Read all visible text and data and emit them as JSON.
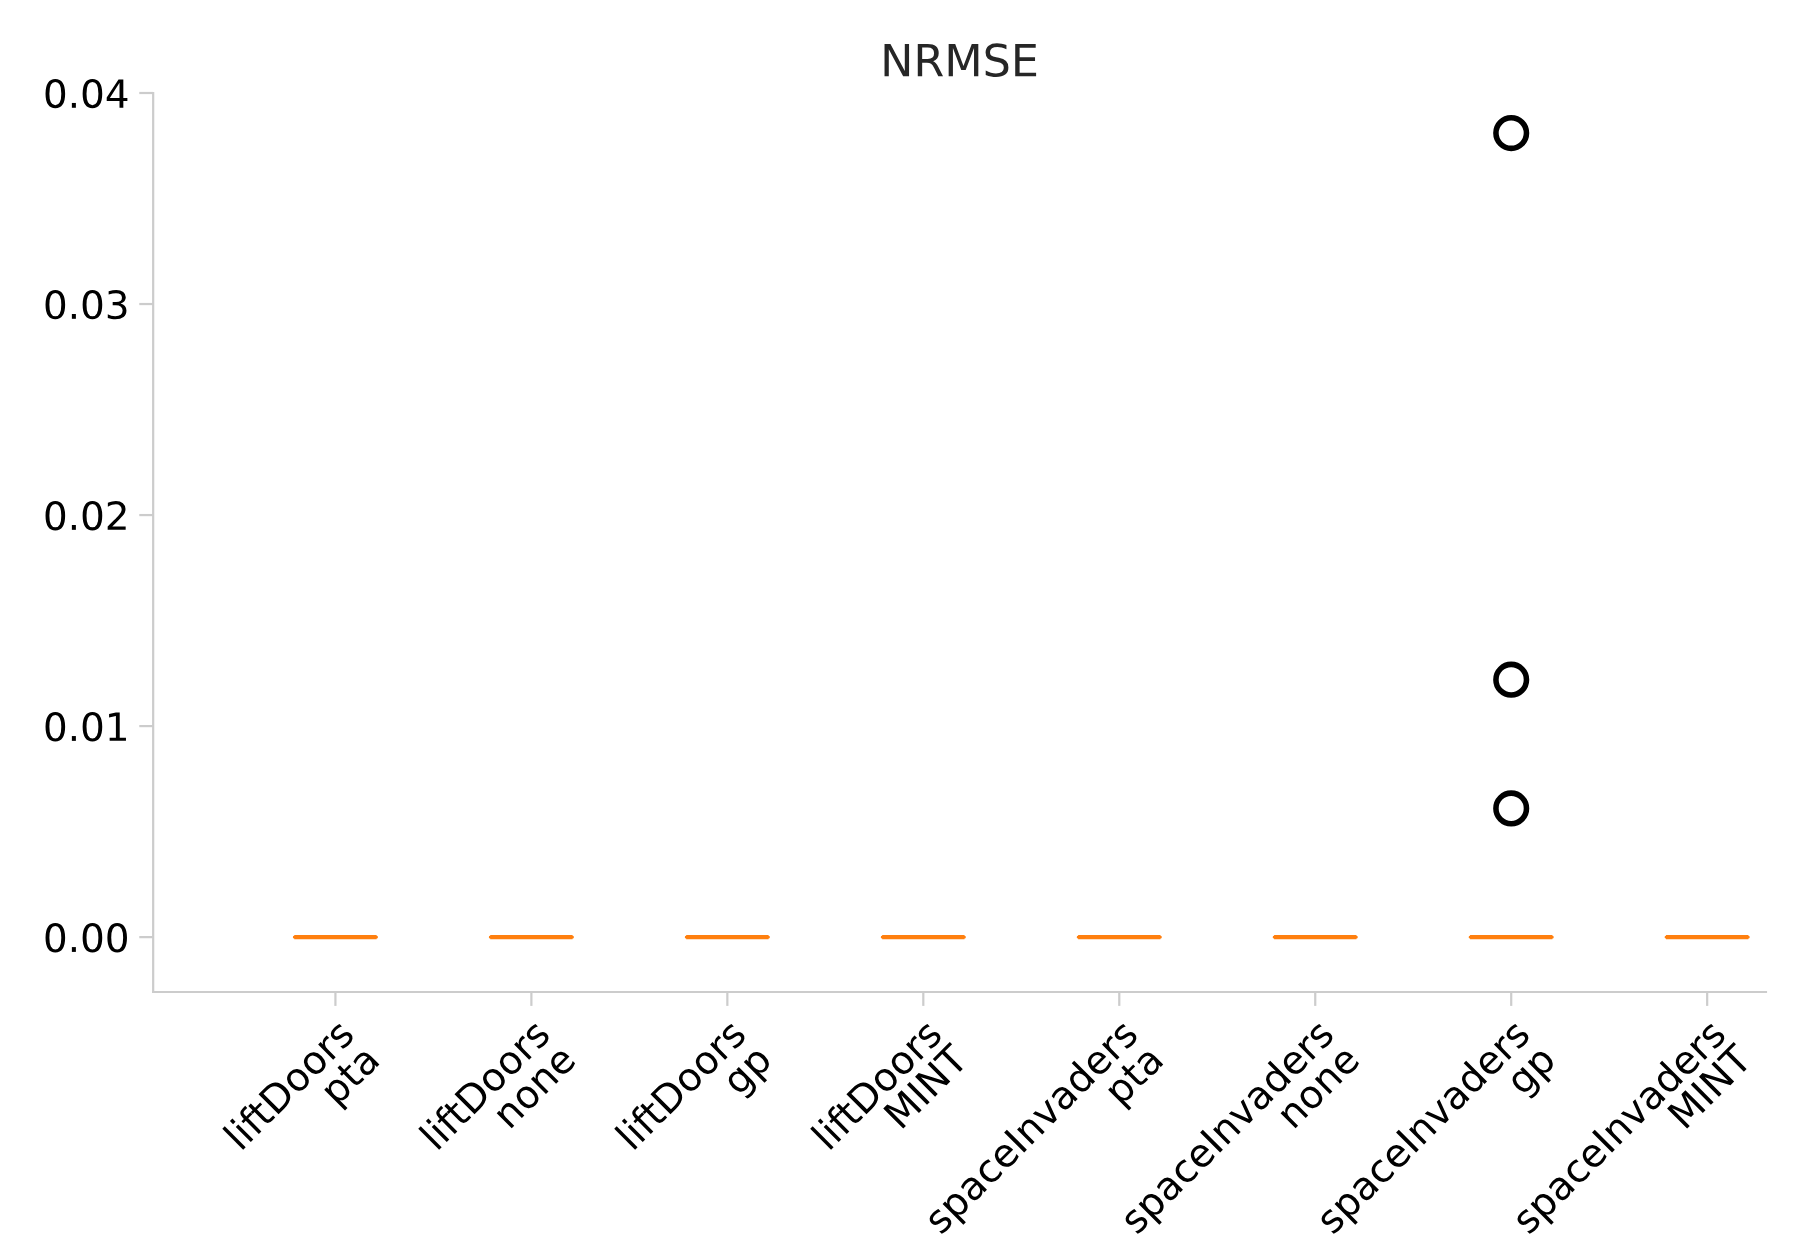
{
  "chart_data": {
    "type": "box",
    "title": "NRMSE",
    "categories": [
      "liftDoors\npta",
      "liftDoors\nnone",
      "liftDoors\ngp",
      "liftDoors\nMINT",
      "spaceInvaders\npta",
      "spaceInvaders\nnone",
      "spaceInvaders\ngp",
      "spaceInvaders\nMINT"
    ],
    "boxes": [
      {
        "low": 0,
        "q1": 0,
        "median": 0,
        "q3": 0,
        "high": 0
      },
      {
        "low": 0,
        "q1": 0,
        "median": 0,
        "q3": 0,
        "high": 0
      },
      {
        "low": 0,
        "q1": 0,
        "median": 0,
        "q3": 0,
        "high": 0
      },
      {
        "low": 0,
        "q1": 0,
        "median": 0,
        "q3": 0,
        "high": 0
      },
      {
        "low": 0,
        "q1": 0,
        "median": 0,
        "q3": 0,
        "high": 0
      },
      {
        "low": 0,
        "q1": 0,
        "median": 0,
        "q3": 0,
        "high": 0
      },
      {
        "low": 0,
        "q1": 0,
        "median": 0,
        "q3": 0,
        "high": 0,
        "outliers": [
          0.0061,
          0.0122,
          0.0381
        ]
      },
      {
        "low": 0,
        "q1": 0,
        "median": 0,
        "q3": 0,
        "high": 0
      }
    ],
    "color": "#ff7f0e",
    "ylim": [
      -0.0026,
      0.04
    ],
    "yticks": [
      {
        "value": 0,
        "label": "0.00"
      },
      0.01,
      0.02,
      0.03,
      0.04
    ],
    "grid": false
  }
}
